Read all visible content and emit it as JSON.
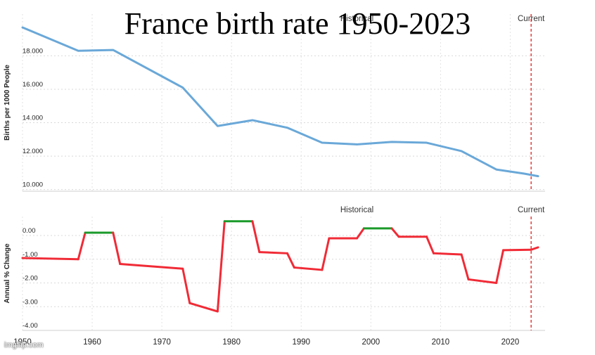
{
  "title": "France birth rate 1950-2023",
  "watermark": "imgflip.com",
  "chart_data": [
    {
      "type": "line",
      "ylabel": "Births per 1000 People",
      "header_left": "Historical",
      "header_right": "Current",
      "ylim": [
        9.9,
        20.5
      ],
      "yticks": [
        10.0,
        12.0,
        14.0,
        16.0,
        18.0
      ],
      "ytick_labels": [
        "10.000",
        "12.000",
        "14.000",
        "16.000",
        "18.000"
      ],
      "grid": true,
      "line_color": "#6aa8d8",
      "current_marker_color": "#e02020",
      "current_marker_x": 2023,
      "x": [
        1950,
        1958,
        1963,
        1973,
        1978,
        1983,
        1988,
        1993,
        1998,
        2003,
        2008,
        2013,
        2018,
        2022,
        2024
      ],
      "y": [
        19.7,
        18.3,
        18.35,
        16.1,
        13.8,
        14.15,
        13.7,
        12.8,
        12.7,
        12.85,
        12.8,
        12.3,
        11.2,
        10.95,
        10.8
      ]
    },
    {
      "type": "line",
      "ylabel": "Annual % Change",
      "header_left": "Historical",
      "header_right": "Current",
      "ylim": [
        -4.0,
        0.8
      ],
      "yticks": [
        -4.0,
        -3.0,
        -2.0,
        -1.0,
        0.0
      ],
      "ytick_labels": [
        "-4.00",
        "-3.00",
        "-2.00",
        "-1.00",
        "0.00"
      ],
      "grid": true,
      "positive_color": "#1a9a2a",
      "negative_color": "#f02b36",
      "current_marker_color": "#e02020",
      "current_marker_x": 2023,
      "x": [
        1950,
        1958,
        1959,
        1963,
        1964,
        1973,
        1974,
        1978,
        1979,
        1983,
        1984,
        1988,
        1989,
        1993,
        1994,
        1998,
        1999,
        2003,
        2004,
        2008,
        2009,
        2013,
        2014,
        2018,
        2019,
        2023,
        2024
      ],
      "y": [
        -0.95,
        -1.0,
        0.12,
        0.12,
        -1.2,
        -1.4,
        -2.85,
        -3.2,
        0.6,
        0.6,
        -0.7,
        -0.75,
        -1.35,
        -1.45,
        -0.12,
        -0.12,
        0.3,
        0.3,
        -0.05,
        -0.05,
        -0.75,
        -0.8,
        -1.85,
        -2.0,
        -0.62,
        -0.6,
        -0.5
      ]
    }
  ],
  "x_axis": {
    "xlim": [
      1950,
      2025
    ],
    "ticks": [
      1950,
      1960,
      1970,
      1980,
      1990,
      2000,
      2010,
      2020
    ],
    "tick_labels": [
      "1950",
      "1960",
      "1970",
      "1980",
      "1990",
      "2000",
      "2010",
      "2020"
    ]
  }
}
